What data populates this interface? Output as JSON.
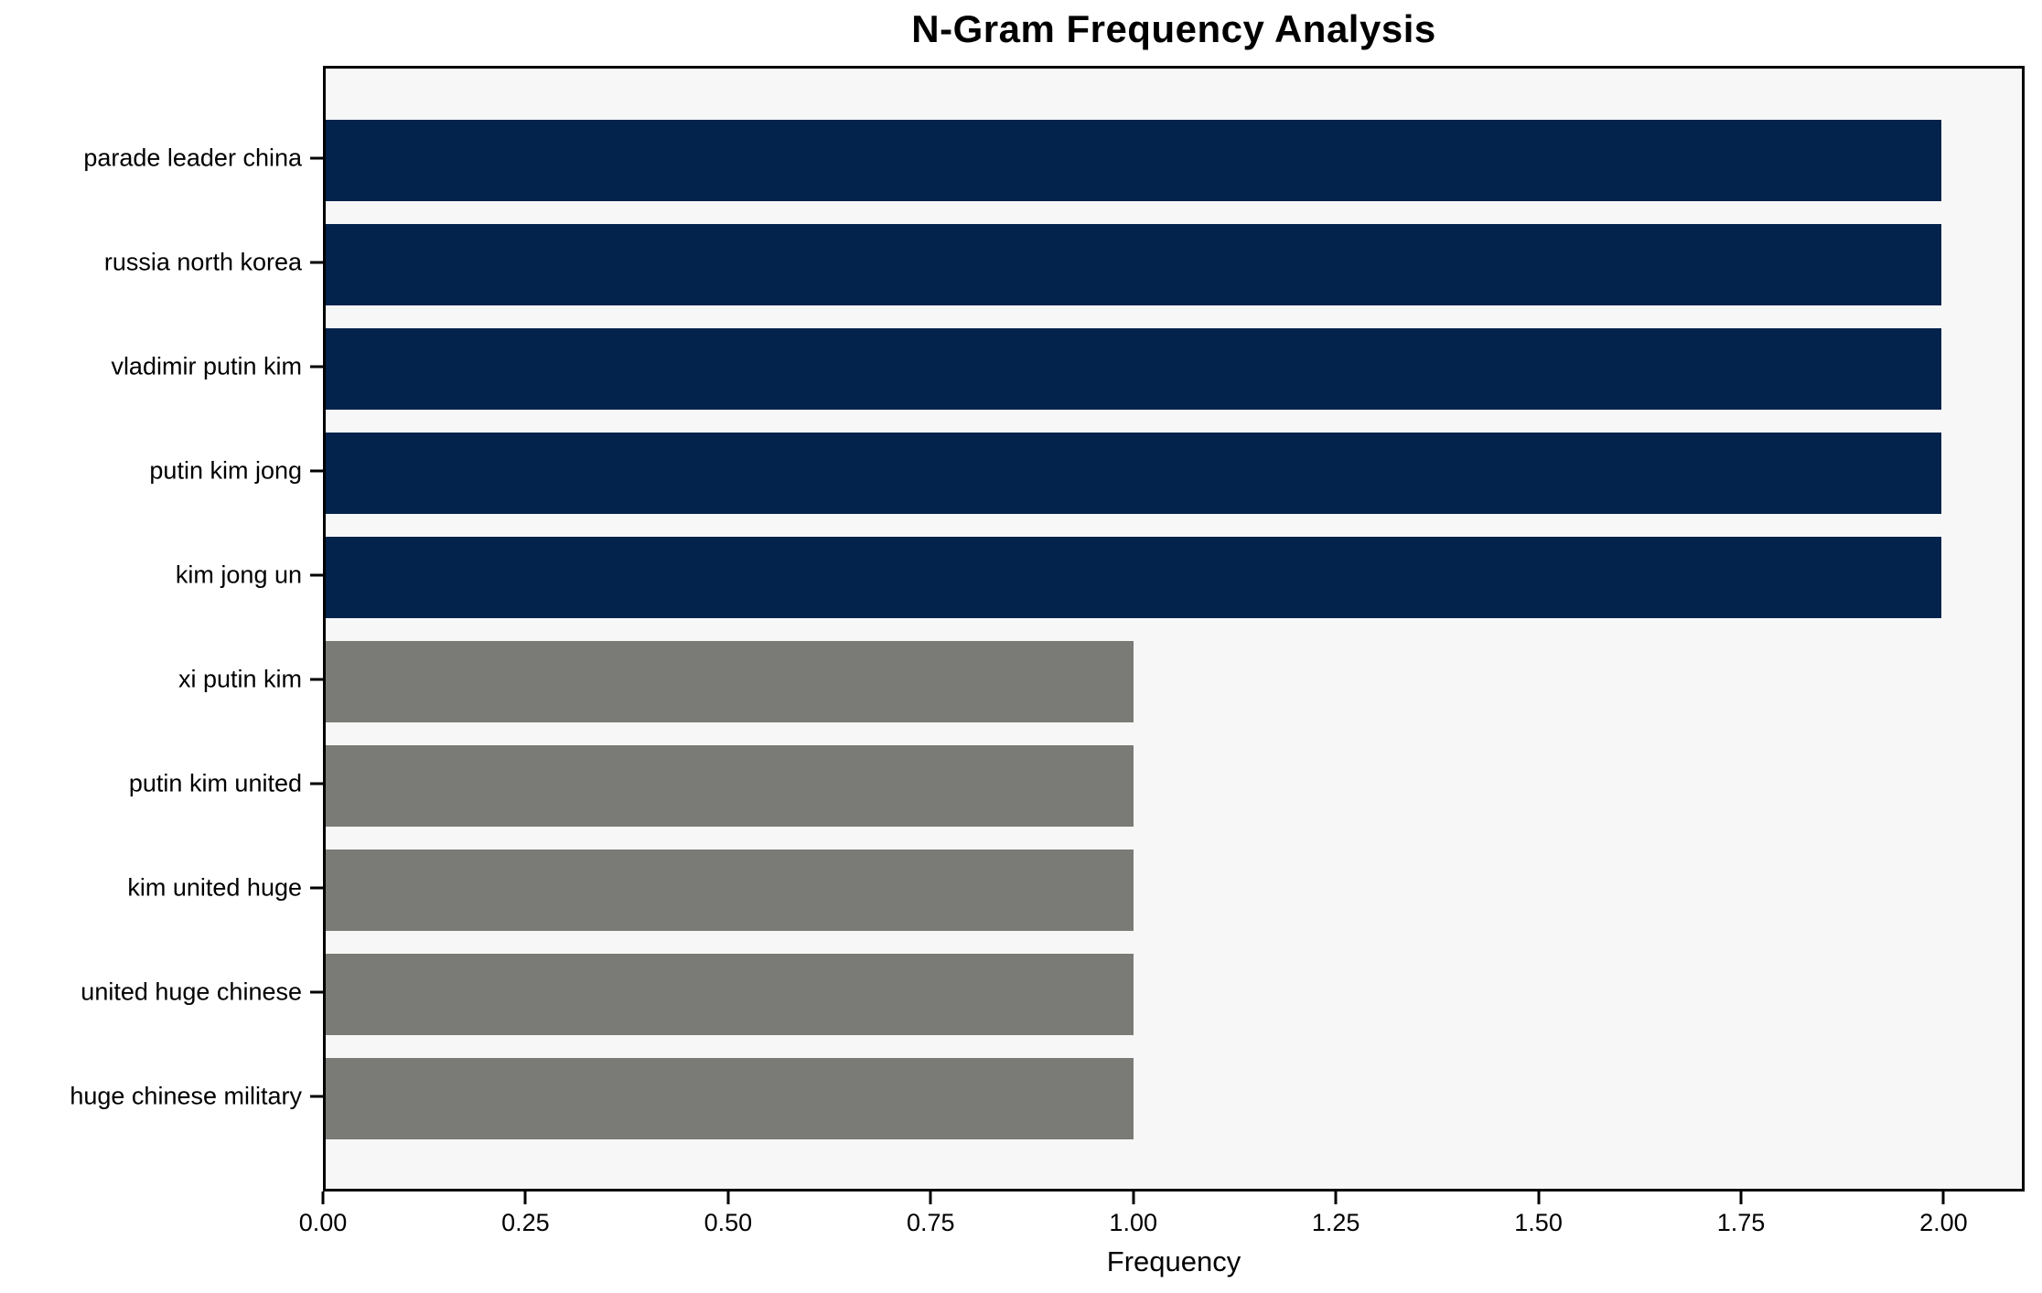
{
  "chart_data": {
    "type": "bar",
    "orientation": "horizontal",
    "title": "N-Gram Frequency Analysis",
    "xlabel": "Frequency",
    "ylabel": "",
    "categories": [
      "parade leader china",
      "russia north korea",
      "vladimir putin kim",
      "putin kim jong",
      "kim jong un",
      "xi putin kim",
      "putin kim united",
      "kim united huge",
      "united huge chinese",
      "huge chinese military"
    ],
    "values": [
      2,
      2,
      2,
      2,
      2,
      1,
      1,
      1,
      1,
      1
    ],
    "bar_colors": [
      "#03224c",
      "#03224c",
      "#03224c",
      "#03224c",
      "#03224c",
      "#7a7a76",
      "#7a7a76",
      "#7a7a76",
      "#7a7a76",
      "#7a7a76"
    ],
    "xlim": [
      0,
      2.1
    ],
    "xticks": [
      0,
      0.25,
      0.5,
      0.75,
      1.0,
      1.25,
      1.5,
      1.75,
      2.0
    ],
    "xtick_labels": [
      "0.00",
      "0.25",
      "0.50",
      "0.75",
      "1.00",
      "1.25",
      "1.50",
      "1.75",
      "2.00"
    ],
    "grid": false,
    "legend": null,
    "plot_background": "#f7f7f7",
    "figure_background": "#ffffff",
    "spine_color": "#000000"
  }
}
